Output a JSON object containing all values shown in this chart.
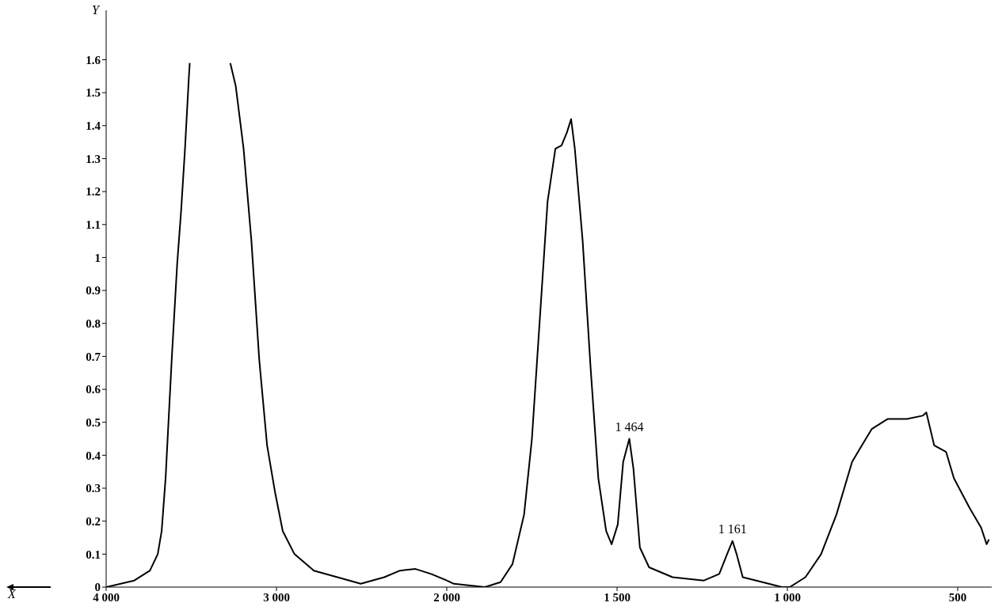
{
  "chart_data": [
    {
      "type": "line",
      "xlabel": "X",
      "ylabel": "Y",
      "x": [
        4000,
        3835,
        3743,
        3697,
        3674,
        3651,
        3615,
        3583,
        3560,
        3537,
        3514,
        3509,
        3390,
        3271,
        3239,
        3193,
        3147,
        3101,
        3055,
        3009,
        2963,
        2894,
        2780,
        2642,
        2505,
        2367,
        2275,
        2183,
        2092,
        2000
      ],
      "series": [
        {
          "color": "#000000",
          "values": [
            0,
            0.02,
            0.05,
            0.1,
            0.17,
            0.33,
            0.69,
            0.98,
            1.14,
            1.33,
            1.55,
            1.59,
            null,
            1.59,
            1.52,
            1.33,
            1.05,
            0.69,
            0.43,
            0.29,
            0.17,
            0.1,
            0.05,
            0.03,
            0.01,
            0.03,
            0.05,
            0.055,
            0.04,
            0.02
          ]
        }
      ],
      "xlim": [
        4000,
        2000
      ],
      "xticks": [
        {
          "value": 4000,
          "label": "4 000"
        },
        {
          "value": 3000,
          "label": "3 000"
        },
        {
          "value": 2000,
          "label": "2 000"
        }
      ],
      "ylim": [
        0,
        1.75
      ],
      "yticks": [
        0,
        0.1,
        0.2,
        0.3,
        0.4,
        0.5,
        0.6,
        0.7,
        0.8,
        0.9,
        1,
        1.1,
        1.2,
        1.3,
        1.4,
        1.5,
        1.6
      ],
      "grid": false,
      "legend": false,
      "marker": "none",
      "line_style": "solid"
    },
    {
      "type": "line",
      "x": [
        2000,
        1979,
        1888,
        1842,
        1807,
        1773,
        1750,
        1727,
        1704,
        1681,
        1663,
        1647,
        1635,
        1624,
        1601,
        1578,
        1555,
        1532,
        1516,
        1498,
        1482,
        1464,
        1452,
        1433,
        1406,
        1337,
        1245,
        1200,
        1177,
        1161,
        1149,
        1131,
        1073,
        1016,
        993,
        947,
        901,
        856,
        810,
        787,
        752,
        706,
        649,
        603,
        592,
        569,
        534,
        511,
        465,
        431,
        415,
        408
      ],
      "series": [
        {
          "color": "#000000",
          "values": [
            0.02,
            0.01,
            0,
            0.015,
            0.07,
            0.22,
            0.45,
            0.81,
            1.17,
            1.33,
            1.34,
            1.38,
            1.42,
            1.33,
            1.05,
            0.67,
            0.33,
            0.17,
            0.13,
            0.19,
            0.38,
            0.45,
            0.36,
            0.12,
            0.06,
            0.03,
            0.02,
            0.04,
            0.1,
            0.14,
            0.1,
            0.03,
            0.015,
            0,
            0,
            0.03,
            0.1,
            0.22,
            0.38,
            0.42,
            0.48,
            0.51,
            0.51,
            0.52,
            0.53,
            0.43,
            0.41,
            0.33,
            0.24,
            0.18,
            0.13,
            0.145
          ]
        }
      ],
      "xlim": [
        2000,
        400
      ],
      "xticks": [
        {
          "value": 1500,
          "label": "1 500"
        },
        {
          "value": 1000,
          "label": "1 000"
        },
        {
          "value": 500,
          "label": "500"
        }
      ],
      "ylim": [
        0,
        1.6
      ],
      "yticks": [
        0,
        0.1,
        0.2,
        0.3,
        0.4,
        0.5,
        0.6,
        0.7,
        0.8,
        0.9,
        1,
        1.1,
        1.2,
        1.3,
        1.4,
        1.5,
        1.6
      ],
      "tick_labels": "x",
      "annotations": [
        {
          "text": "1 464",
          "x": 1464,
          "y": 0.45
        },
        {
          "text": "1 161",
          "x": 1161,
          "y": 0.14
        }
      ],
      "grid": false,
      "legend": false,
      "marker": "none",
      "line_style": "solid"
    }
  ]
}
